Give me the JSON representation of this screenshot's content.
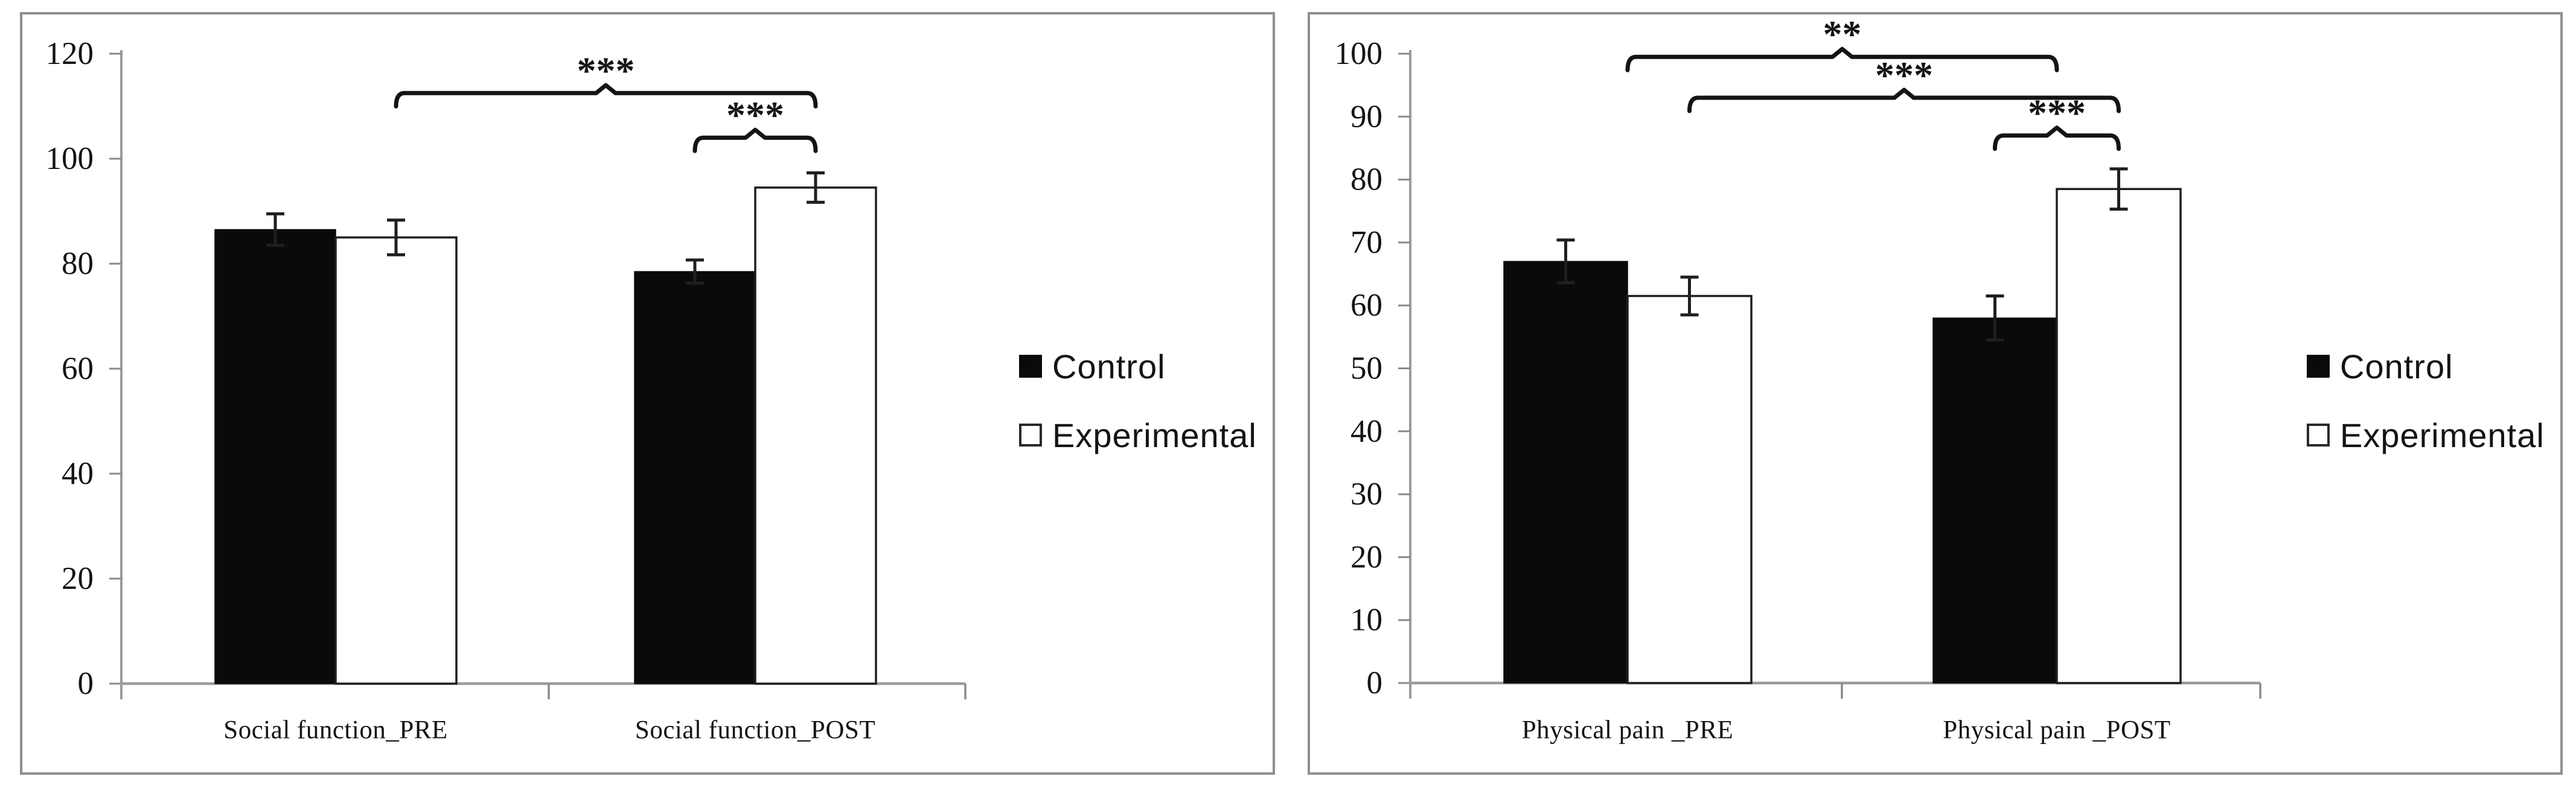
{
  "colors": {
    "background": "#ffffff",
    "bar_control": "#0a0a0a",
    "bar_experimental": "#ffffff",
    "bar_outline": "#1f1f1f",
    "axis_line": "#9b9b9b",
    "tick_line": "#8a8a8a",
    "text": "#141414",
    "panel_border": "#8f8f8f",
    "bracket": "#141414",
    "error_bar": "#1f1f1f"
  },
  "legend": {
    "items": [
      {
        "label": "Control",
        "swatch": "filled-black-square"
      },
      {
        "label": "Experimental",
        "swatch": "outlined-white-square"
      }
    ]
  },
  "chart_data": [
    {
      "id": "social-function",
      "type": "bar",
      "title": "",
      "xlabel": "",
      "ylabel": "",
      "ylim": [
        0,
        120
      ],
      "ystep": 20,
      "yticks": [
        0,
        20,
        40,
        60,
        80,
        100,
        120
      ],
      "grid": false,
      "legend_position": "right",
      "categories": [
        "Social function_PRE",
        "Social function_POST"
      ],
      "series": [
        {
          "name": "Control",
          "values": [
            86.5,
            78.5
          ],
          "errors": [
            3.0,
            2.2
          ]
        },
        {
          "name": "Experimental",
          "values": [
            85.0,
            94.5
          ],
          "errors": [
            3.3,
            2.8
          ]
        }
      ],
      "significance_brackets": [
        {
          "label": "***",
          "from": {
            "category": 0,
            "series": 1
          },
          "to": {
            "category": 1,
            "series": 1
          },
          "height": 112.5
        },
        {
          "label": "***",
          "from": {
            "category": 1,
            "series": 0
          },
          "to": {
            "category": 1,
            "series": 1
          },
          "height": 104
        }
      ]
    },
    {
      "id": "physical-pain",
      "type": "bar",
      "title": "",
      "xlabel": "",
      "ylabel": "",
      "ylim": [
        0,
        100
      ],
      "ystep": 10,
      "yticks": [
        0,
        10,
        20,
        30,
        40,
        50,
        60,
        70,
        80,
        90,
        100
      ],
      "grid": false,
      "legend_position": "right",
      "categories": [
        "Physical pain _PRE",
        "Physical pain _POST"
      ],
      "series": [
        {
          "name": "Control",
          "values": [
            67.0,
            58.0
          ],
          "errors": [
            3.4,
            3.5
          ]
        },
        {
          "name": "Experimental",
          "values": [
            61.5,
            78.5
          ],
          "errors": [
            3.0,
            3.2
          ]
        }
      ],
      "significance_brackets": [
        {
          "label": "**",
          "from": {
            "category": 0,
            "series": null
          },
          "to": {
            "category": 1,
            "series": null
          },
          "height": 99.5
        },
        {
          "label": "***",
          "from": {
            "category": 0,
            "series": 1
          },
          "to": {
            "category": 1,
            "series": 1
          },
          "height": 93
        },
        {
          "label": "***",
          "from": {
            "category": 1,
            "series": 0
          },
          "to": {
            "category": 1,
            "series": 1
          },
          "height": 87
        }
      ]
    }
  ]
}
